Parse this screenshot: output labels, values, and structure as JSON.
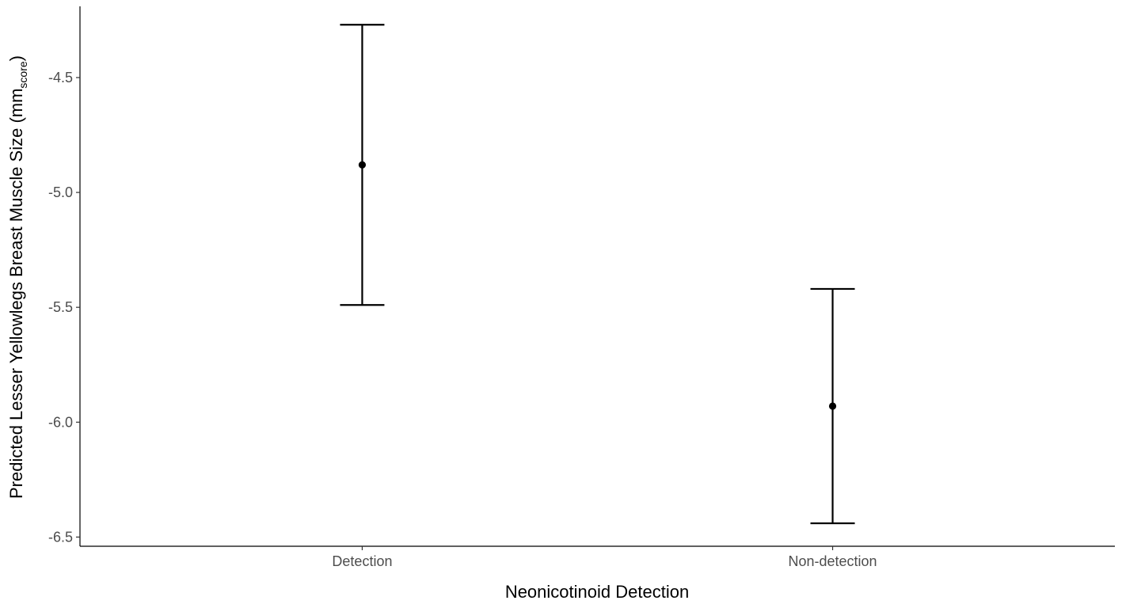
{
  "chart_data": {
    "type": "scatter",
    "subtype": "point-with-errorbars",
    "title": "",
    "xlabel": "Neonicotinoid Detection",
    "ylabel": {
      "main": "Predicted Lesser Yellowlegs Breast Muscle Size (mm",
      "subscript": "score",
      "close": ")"
    },
    "categories": [
      "Detection",
      "Non-detection"
    ],
    "series": [
      {
        "points": [
          {
            "category": "Detection",
            "estimate": -4.88,
            "lower": -5.49,
            "upper": -4.27
          },
          {
            "category": "Non-detection",
            "estimate": -5.93,
            "lower": -6.44,
            "upper": -5.42
          }
        ]
      }
    ],
    "ylim": [
      -6.54,
      -4.19
    ],
    "yticks": [
      -4.5,
      -5.0,
      -5.5,
      -6.0,
      -6.5
    ],
    "ytick_labels": [
      "-4.5",
      "-5.0",
      "-5.5",
      "-6.0",
      "-6.5"
    ],
    "grid": false,
    "legend": "none",
    "colors": {
      "point": "#000000",
      "errorbar": "#000000",
      "axis": "#000000",
      "tick_text": "#4d4d4d"
    }
  }
}
